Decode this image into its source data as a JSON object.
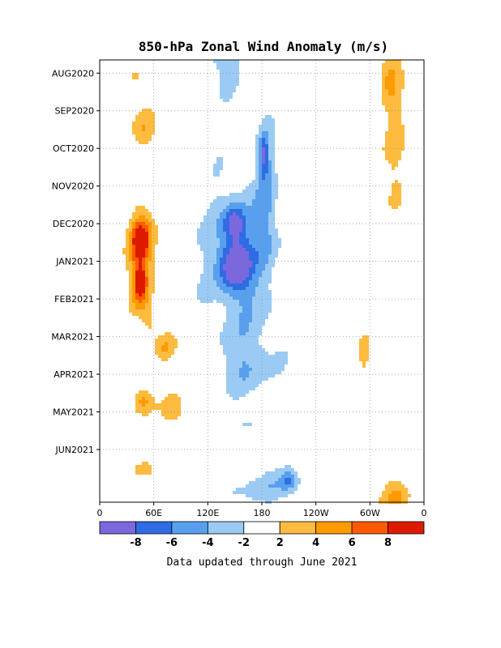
{
  "chart_data": {
    "type": "heatmap",
    "title": "850-hPa Zonal Wind Anomaly (m/s)",
    "x_ticks": [
      "0",
      "60E",
      "120E",
      "180",
      "120W",
      "60W",
      "0"
    ],
    "x_range": [
      0,
      360
    ],
    "y_ticks": [
      "AUG2020",
      "SEP2020",
      "OCT2020",
      "NOV2020",
      "DEC2020",
      "JAN2021",
      "FEB2021",
      "MAR2021",
      "APR2021",
      "MAY2021",
      "JUN2021"
    ],
    "y_range_months": [
      -0.35,
      11.4
    ],
    "grid": true,
    "colorbar": {
      "levels": [
        "-8",
        "-6",
        "-4",
        "-2",
        "2",
        "4",
        "6",
        "8"
      ],
      "colors": [
        "#7b68dd",
        "#2f6ce4",
        "#58a0ee",
        "#9bcbf4",
        "#ffffff",
        "#fdbb40",
        "#ff9a00",
        "#ff5a00",
        "#dd1a00"
      ]
    },
    "blobs": [
      {
        "lon": 140,
        "t": -0.3,
        "rlon": 28,
        "rt": 0.9,
        "v": -2.8
      },
      {
        "lon": 185,
        "t": 2.8,
        "rlon": 10,
        "rt": 1.9,
        "v": -3.2
      },
      {
        "lon": 182,
        "t": 2.2,
        "rlon": 5,
        "rt": 0.5,
        "v": -5.2
      },
      {
        "lon": 158,
        "t": 5.2,
        "rlon": 38,
        "rt": 1.9,
        "v": -4.2
      },
      {
        "lon": 150,
        "t": 4.0,
        "rlon": 12,
        "rt": 0.45,
        "v": -6.5
      },
      {
        "lon": 150,
        "t": 5.1,
        "rlon": 16,
        "rt": 0.6,
        "v": -7.2
      },
      {
        "lon": 155,
        "t": 3.8,
        "rlon": 80,
        "rt": 2.3,
        "v": -1.2
      },
      {
        "lon": 165,
        "t": 7.8,
        "rlon": 38,
        "rt": 0.9,
        "v": -3.1
      },
      {
        "lon": 168,
        "t": 9.3,
        "rlon": 22,
        "rt": 0.3,
        "v": -2.2
      },
      {
        "lon": 185,
        "t": 11.0,
        "rlon": 55,
        "rt": 0.5,
        "v": -3.0
      },
      {
        "lon": 210,
        "t": 10.8,
        "rlon": 9,
        "rt": 0.3,
        "v": -4.2
      },
      {
        "lon": 48,
        "t": 1.5,
        "rlon": 14,
        "rt": 0.6,
        "v": 3.6
      },
      {
        "lon": 40,
        "t": 0.2,
        "rlon": 9,
        "rt": 0.5,
        "v": 2.6
      },
      {
        "lon": 48,
        "t": 4.8,
        "rlon": 20,
        "rt": 1.4,
        "v": 4.6
      },
      {
        "lon": 45,
        "t": 4.4,
        "rlon": 10,
        "rt": 0.5,
        "v": 6.6
      },
      {
        "lon": 45,
        "t": 5.6,
        "rlon": 8,
        "rt": 0.6,
        "v": 6.8
      },
      {
        "lon": 55,
        "t": 6.6,
        "rlon": 8,
        "rt": 0.4,
        "v": 2.8
      },
      {
        "lon": 72,
        "t": 7.3,
        "rlon": 14,
        "rt": 0.4,
        "v": 3.5
      },
      {
        "lon": 48,
        "t": 8.7,
        "rlon": 12,
        "rt": 0.4,
        "v": 5.0
      },
      {
        "lon": 85,
        "t": 9.0,
        "rlon": 16,
        "rt": 0.5,
        "v": 3.0
      },
      {
        "lon": 45,
        "t": 10.5,
        "rlon": 14,
        "rt": 0.3,
        "v": 2.8
      },
      {
        "lon": 330,
        "t": 2.0,
        "rlon": 14,
        "rt": 3.0,
        "v": 2.9
      },
      {
        "lon": 320,
        "t": 0.0,
        "rlon": 10,
        "rt": 0.8,
        "v": 2.6
      },
      {
        "lon": 270,
        "t": 5.0,
        "rlon": 12,
        "rt": 0.5,
        "v": 2.5
      },
      {
        "lon": 295,
        "t": 7.6,
        "rlon": 10,
        "rt": 0.7,
        "v": 2.5
      },
      {
        "lon": 330,
        "t": 11.4,
        "rlon": 18,
        "rt": 0.6,
        "v": 4.2
      }
    ]
  },
  "footnote": "Data updated through June 2021"
}
